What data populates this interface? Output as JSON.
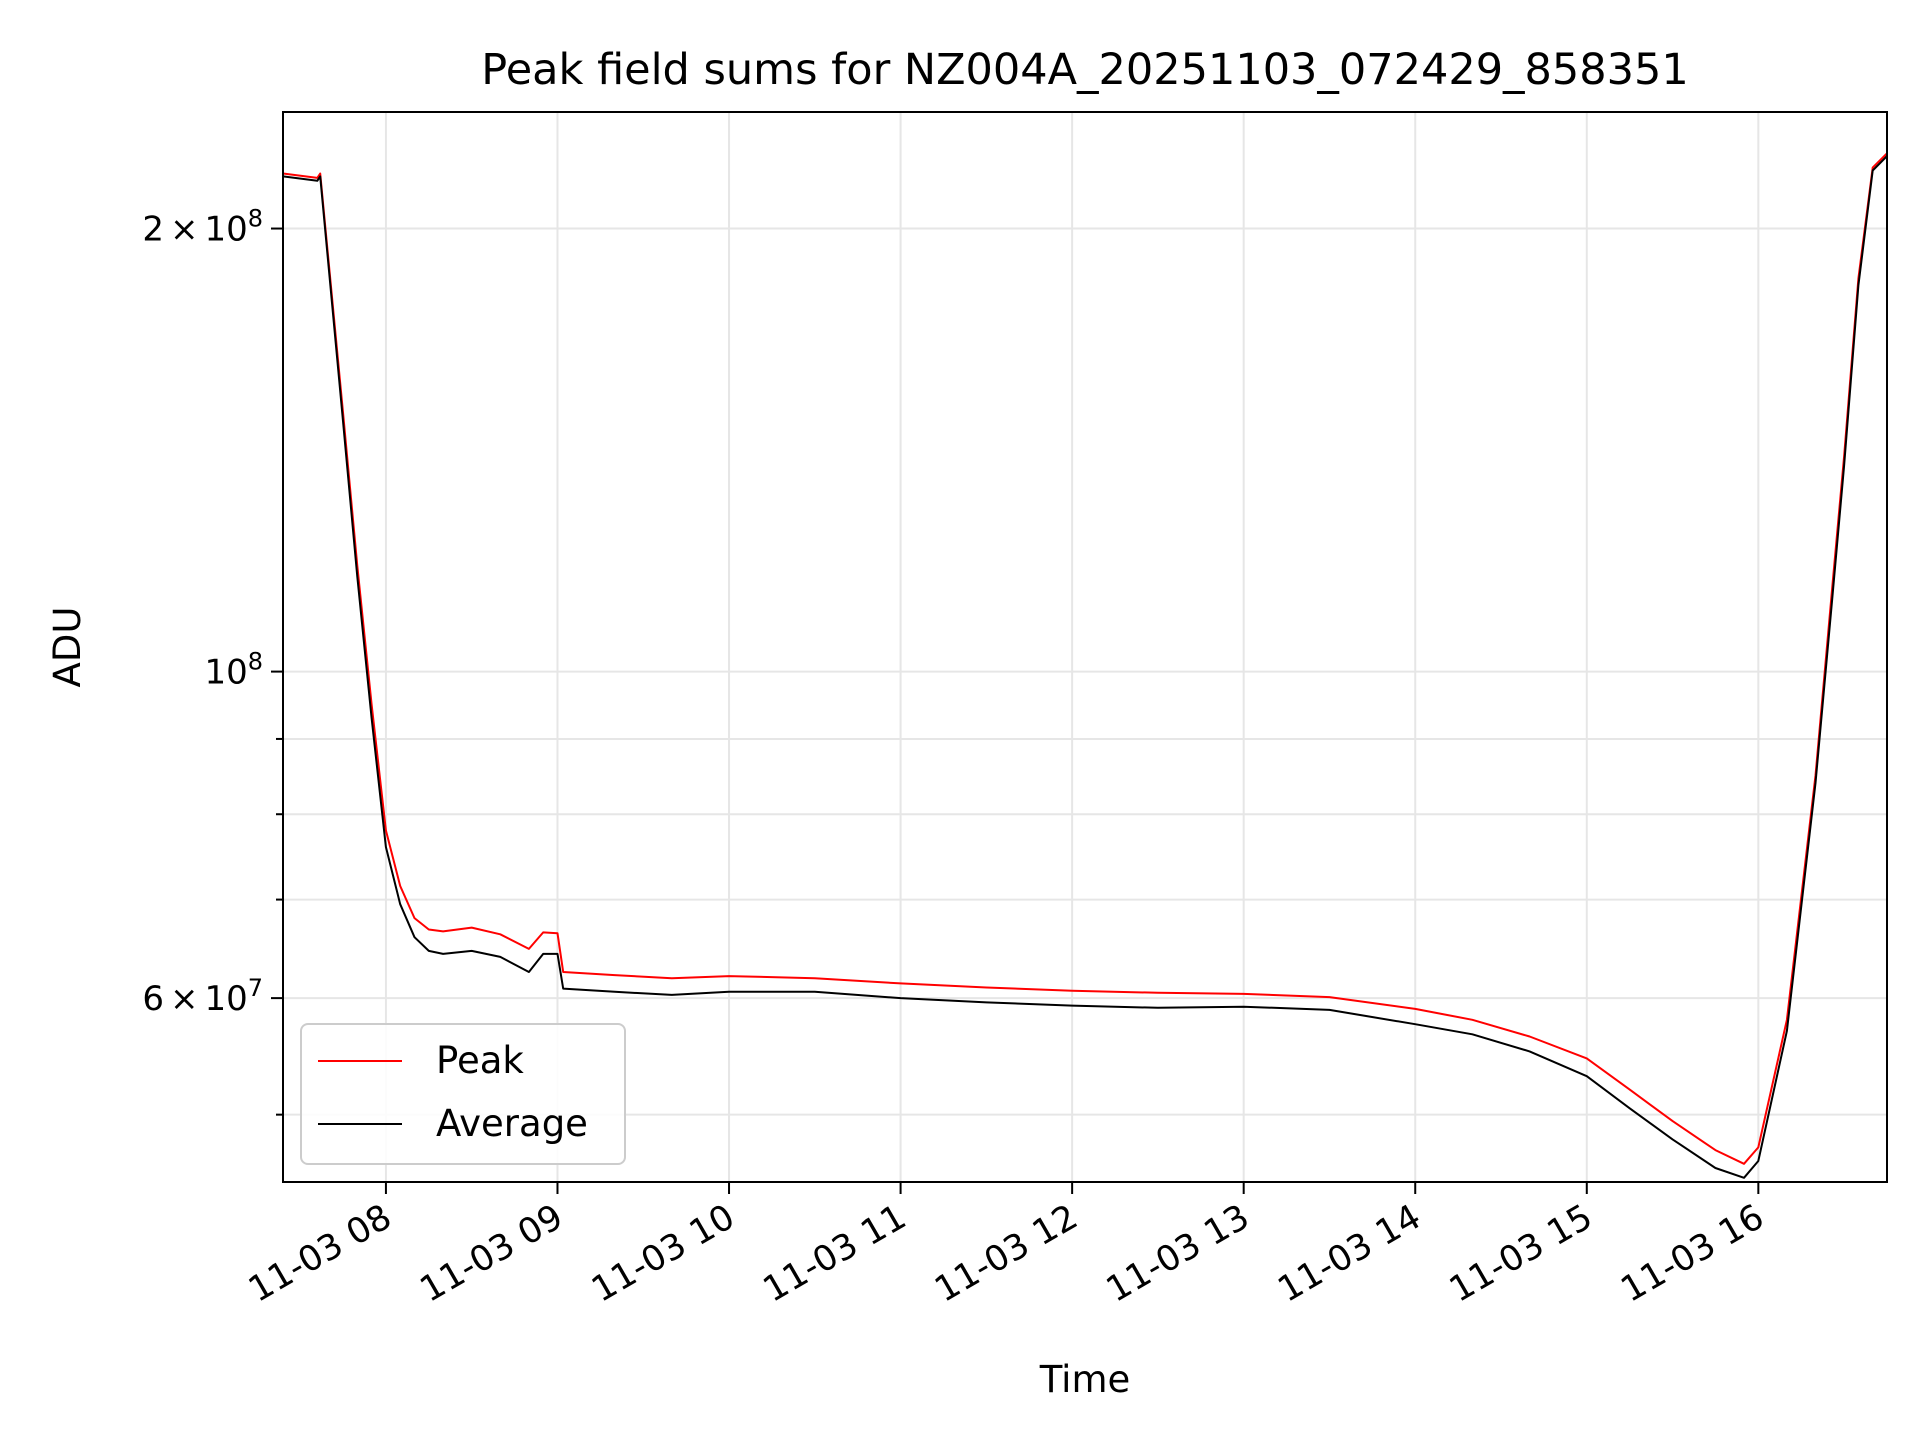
{
  "chart_data": {
    "type": "line",
    "title": "Peak field sums for NZ004A_20251103_072429_858351",
    "xlabel": "Time",
    "ylabel": "ADU",
    "yscale": "log",
    "xlim": [
      "11-03 07:24",
      "11-03 16:45"
    ],
    "ylim": [
      45000000,
      240000000
    ],
    "grid": true,
    "legend_placement": "lower-left",
    "x_ticks": [
      "11-03 08",
      "11-03 09",
      "11-03 10",
      "11-03 11",
      "11-03 12",
      "11-03 13",
      "11-03 14",
      "11-03 15",
      "11-03 16"
    ],
    "y_ticks": [
      {
        "value": 200000000,
        "mantissa": "2",
        "times": "×",
        "base": "10",
        "exp": "8"
      },
      {
        "value": 100000000,
        "mantissa": "",
        "times": "",
        "base": "10",
        "exp": "8"
      },
      {
        "value": 60000000,
        "mantissa": "6",
        "times": "×",
        "base": "10",
        "exp": "7"
      }
    ],
    "y_minor_ticks": [
      50000000,
      70000000,
      80000000,
      90000000
    ],
    "series": [
      {
        "name": "Peak",
        "color": "#ff0000",
        "points": [
          [
            "07:24",
            218000000
          ],
          [
            "07:36",
            216500000
          ],
          [
            "07:37",
            218000000
          ],
          [
            "07:45",
            150000000
          ],
          [
            "07:50",
            118000000
          ],
          [
            "07:55",
            95000000
          ],
          [
            "08:00",
            78000000
          ],
          [
            "08:05",
            71500000
          ],
          [
            "08:10",
            68000000
          ],
          [
            "08:15",
            66800000
          ],
          [
            "08:20",
            66600000
          ],
          [
            "08:30",
            67000000
          ],
          [
            "08:40",
            66300000
          ],
          [
            "08:50",
            64800000
          ],
          [
            "08:55",
            66500000
          ],
          [
            "09:00",
            66400000
          ],
          [
            "09:02",
            62500000
          ],
          [
            "09:20",
            62200000
          ],
          [
            "09:40",
            61900000
          ],
          [
            "10:00",
            62100000
          ],
          [
            "10:30",
            61900000
          ],
          [
            "11:00",
            61400000
          ],
          [
            "11:30",
            61000000
          ],
          [
            "12:00",
            60700000
          ],
          [
            "12:30",
            60500000
          ],
          [
            "13:00",
            60400000
          ],
          [
            "13:30",
            60100000
          ],
          [
            "14:00",
            59000000
          ],
          [
            "14:20",
            58000000
          ],
          [
            "14:40",
            56500000
          ],
          [
            "15:00",
            54600000
          ],
          [
            "15:15",
            52000000
          ],
          [
            "15:30",
            49500000
          ],
          [
            "15:45",
            47300000
          ],
          [
            "15:55",
            46300000
          ],
          [
            "16:00",
            47500000
          ],
          [
            "16:10",
            58000000
          ],
          [
            "16:20",
            85000000
          ],
          [
            "16:26",
            115000000
          ],
          [
            "16:30",
            140000000
          ],
          [
            "16:35",
            185000000
          ],
          [
            "16:40",
            220000000
          ],
          [
            "16:45",
            225000000
          ]
        ]
      },
      {
        "name": "Average",
        "color": "#000000",
        "points": [
          [
            "07:24",
            217000000
          ],
          [
            "07:36",
            215500000
          ],
          [
            "07:37",
            217000000
          ],
          [
            "07:45",
            148000000
          ],
          [
            "07:50",
            116000000
          ],
          [
            "07:55",
            93000000
          ],
          [
            "08:00",
            76000000
          ],
          [
            "08:05",
            69500000
          ],
          [
            "08:10",
            66000000
          ],
          [
            "08:15",
            64600000
          ],
          [
            "08:20",
            64300000
          ],
          [
            "08:30",
            64600000
          ],
          [
            "08:40",
            64000000
          ],
          [
            "08:50",
            62500000
          ],
          [
            "08:55",
            64300000
          ],
          [
            "09:00",
            64300000
          ],
          [
            "09:02",
            60900000
          ],
          [
            "09:20",
            60600000
          ],
          [
            "09:40",
            60300000
          ],
          [
            "10:00",
            60600000
          ],
          [
            "10:30",
            60600000
          ],
          [
            "11:00",
            60000000
          ],
          [
            "11:30",
            59600000
          ],
          [
            "12:00",
            59300000
          ],
          [
            "12:30",
            59100000
          ],
          [
            "13:00",
            59200000
          ],
          [
            "13:30",
            58900000
          ],
          [
            "14:00",
            57600000
          ],
          [
            "14:20",
            56700000
          ],
          [
            "14:40",
            55200000
          ],
          [
            "15:00",
            53100000
          ],
          [
            "15:15",
            50500000
          ],
          [
            "15:30",
            48100000
          ],
          [
            "15:45",
            46000000
          ],
          [
            "15:55",
            45300000
          ],
          [
            "16:00",
            46500000
          ],
          [
            "16:10",
            57000000
          ],
          [
            "16:20",
            84000000
          ],
          [
            "16:26",
            113000000
          ],
          [
            "16:30",
            138000000
          ],
          [
            "16:35",
            183000000
          ],
          [
            "16:40",
            219000000
          ],
          [
            "16:45",
            224000000
          ]
        ]
      }
    ]
  }
}
